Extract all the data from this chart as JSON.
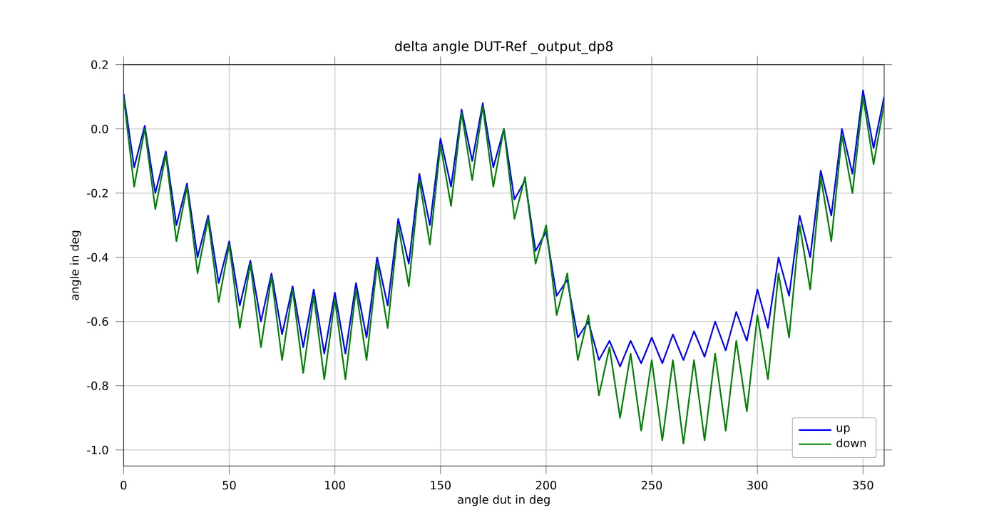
{
  "chart_data": {
    "type": "line",
    "title": "delta angle DUT-Ref _output_dp8",
    "xlabel": "angle dut in deg",
    "ylabel": "angle in deg",
    "x": [
      0,
      5,
      10,
      15,
      20,
      25,
      30,
      35,
      40,
      45,
      50,
      55,
      60,
      65,
      70,
      75,
      80,
      85,
      90,
      95,
      100,
      105,
      110,
      115,
      120,
      125,
      130,
      135,
      140,
      145,
      150,
      155,
      160,
      165,
      170,
      175,
      180,
      185,
      190,
      195,
      200,
      205,
      210,
      215,
      220,
      225,
      230,
      235,
      240,
      245,
      250,
      255,
      260,
      265,
      270,
      275,
      280,
      285,
      290,
      295,
      300,
      305,
      310,
      315,
      320,
      325,
      330,
      335,
      340,
      345,
      350,
      355,
      360
    ],
    "series": [
      {
        "name": "up",
        "color": "#0000ff",
        "values": [
          0.11,
          -0.12,
          0.01,
          -0.2,
          -0.07,
          -0.3,
          -0.17,
          -0.4,
          -0.27,
          -0.48,
          -0.35,
          -0.55,
          -0.41,
          -0.6,
          -0.45,
          -0.64,
          -0.49,
          -0.68,
          -0.5,
          -0.7,
          -0.51,
          -0.7,
          -0.48,
          -0.65,
          -0.4,
          -0.55,
          -0.28,
          -0.42,
          -0.14,
          -0.3,
          -0.03,
          -0.18,
          0.06,
          -0.1,
          0.08,
          -0.12,
          0.0,
          -0.22,
          -0.16,
          -0.38,
          -0.32,
          -0.52,
          -0.47,
          -0.65,
          -0.6,
          -0.72,
          -0.66,
          -0.74,
          -0.66,
          -0.73,
          -0.65,
          -0.73,
          -0.64,
          -0.72,
          -0.63,
          -0.71,
          -0.6,
          -0.69,
          -0.57,
          -0.66,
          -0.5,
          -0.62,
          -0.4,
          -0.52,
          -0.27,
          -0.4,
          -0.13,
          -0.27,
          0.0,
          -0.14,
          0.12,
          -0.06,
          0.1
        ]
      },
      {
        "name": "down",
        "color": "#008000",
        "values": [
          0.1,
          -0.18,
          0.0,
          -0.25,
          -0.08,
          -0.35,
          -0.18,
          -0.45,
          -0.28,
          -0.54,
          -0.36,
          -0.62,
          -0.42,
          -0.68,
          -0.46,
          -0.72,
          -0.5,
          -0.76,
          -0.52,
          -0.78,
          -0.53,
          -0.78,
          -0.5,
          -0.72,
          -0.42,
          -0.62,
          -0.3,
          -0.49,
          -0.16,
          -0.36,
          -0.05,
          -0.24,
          0.05,
          -0.16,
          0.07,
          -0.18,
          0.0,
          -0.28,
          -0.15,
          -0.42,
          -0.3,
          -0.58,
          -0.45,
          -0.72,
          -0.58,
          -0.83,
          -0.68,
          -0.9,
          -0.7,
          -0.94,
          -0.72,
          -0.97,
          -0.72,
          -0.98,
          -0.72,
          -0.97,
          -0.7,
          -0.94,
          -0.66,
          -0.88,
          -0.58,
          -0.78,
          -0.45,
          -0.65,
          -0.3,
          -0.5,
          -0.15,
          -0.35,
          -0.02,
          -0.2,
          0.1,
          -0.11,
          0.08
        ]
      }
    ],
    "xlim": [
      0,
      360
    ],
    "ylim": [
      -1.05,
      0.2
    ],
    "xticks": [
      0,
      50,
      100,
      150,
      200,
      250,
      300,
      350
    ],
    "yticks": [
      {
        "value": -1.0,
        "label": "-1.0"
      },
      {
        "value": -0.8,
        "label": "-0.8"
      },
      {
        "value": -0.6,
        "label": "-0.6"
      },
      {
        "value": -0.4,
        "label": "-0.4"
      },
      {
        "value": -0.2,
        "label": "-0.2"
      },
      {
        "value": 0.0,
        "label": "0.0"
      },
      {
        "value": 0.2,
        "label": "0.2"
      }
    ],
    "grid": true,
    "legend": "bottom right",
    "marker": "none",
    "line_style": "solid"
  }
}
